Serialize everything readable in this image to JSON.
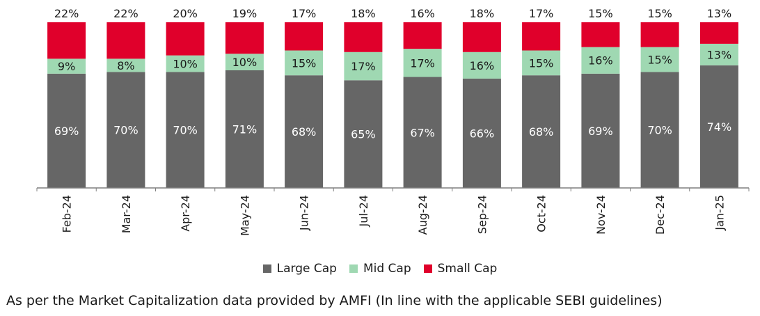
{
  "colors": {
    "large_cap": "#666666",
    "mid_cap": "#9fd8b2",
    "small_cap": "#e0002b",
    "axis": "#7f7f7f"
  },
  "legend": [
    {
      "label": "Large Cap",
      "color": "#666666"
    },
    {
      "label": "Mid Cap",
      "color": "#9fd8b2"
    },
    {
      "label": "Small Cap",
      "color": "#e0002b"
    }
  ],
  "footnote": "As per the Market Capitalization data provided by AMFI (In line with the applicable SEBI guidelines)",
  "chart_data": {
    "type": "bar",
    "stacked": true,
    "title": "",
    "xlabel": "",
    "ylabel": "",
    "categories": [
      "Feb-24",
      "Mar-24",
      "Apr-24",
      "May-24",
      "Jun-24",
      "Jul-24",
      "Aug-24",
      "Sep-24",
      "Oct-24",
      "Nov-24",
      "Dec-24",
      "Jan-25"
    ],
    "series": [
      {
        "name": "Large Cap",
        "values": [
          69,
          70,
          70,
          71,
          68,
          65,
          67,
          66,
          68,
          69,
          70,
          74
        ],
        "labels": [
          "69%",
          "70%",
          "70%",
          "71%",
          "68%",
          "65%",
          "67%",
          "66%",
          "68%",
          "69%",
          "70%",
          "74%"
        ]
      },
      {
        "name": "Mid Cap",
        "values": [
          9,
          8,
          10,
          10,
          15,
          17,
          17,
          16,
          15,
          16,
          15,
          13
        ],
        "labels": [
          "9%",
          "8%",
          "10%",
          "10%",
          "15%",
          "17%",
          "17%",
          "16%",
          "15%",
          "16%",
          "15%",
          "13%"
        ]
      },
      {
        "name": "Small Cap",
        "values": [
          22,
          22,
          20,
          19,
          17,
          18,
          16,
          18,
          17,
          15,
          15,
          13
        ],
        "labels": [
          "22%",
          "22%",
          "20%",
          "19%",
          "17%",
          "18%",
          "16%",
          "18%",
          "17%",
          "15%",
          "15%",
          "13%"
        ]
      }
    ],
    "ylim": [
      0,
      100
    ],
    "grid": false,
    "legend_position": "bottom"
  }
}
